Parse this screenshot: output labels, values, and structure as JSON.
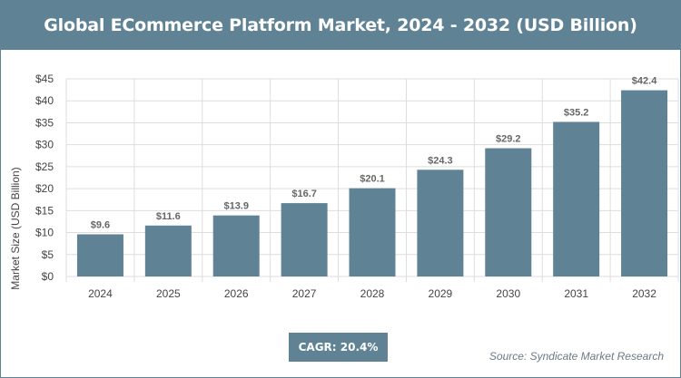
{
  "title": "Global ECommerce Platform Market, 2024 - 2032 (USD Billion)",
  "cagr_label": "CAGR: 20.4%",
  "source": "Source: Syndicate Market Research",
  "colors": {
    "bar": "#5f8394",
    "title_bg": "#5f8394",
    "grid": "#dddddd",
    "axis_text": "#444444",
    "label_text": "#666666"
  },
  "chart_data": {
    "type": "bar",
    "title": "Global ECommerce Platform Market, 2024 - 2032 (USD Billion)",
    "xlabel": "",
    "ylabel": "Market Size (USD Billion)",
    "categories": [
      "2024",
      "2025",
      "2026",
      "2027",
      "2028",
      "2029",
      "2030",
      "2031",
      "2032"
    ],
    "values": [
      9.6,
      11.6,
      13.9,
      16.7,
      20.1,
      24.3,
      29.2,
      35.2,
      42.4
    ],
    "value_labels": [
      "$9.6",
      "$11.6",
      "$13.9",
      "$16.7",
      "$20.1",
      "$24.3",
      "$29.2",
      "$35.2",
      "$42.4"
    ],
    "ylim": [
      0,
      45
    ],
    "yticks": [
      0,
      5,
      10,
      15,
      20,
      25,
      30,
      35,
      40,
      45
    ],
    "ytick_labels": [
      "$0",
      "$5",
      "$10",
      "$15",
      "$20",
      "$25",
      "$30",
      "$35",
      "$40",
      "$45"
    ],
    "grid": true,
    "legend": "none"
  }
}
